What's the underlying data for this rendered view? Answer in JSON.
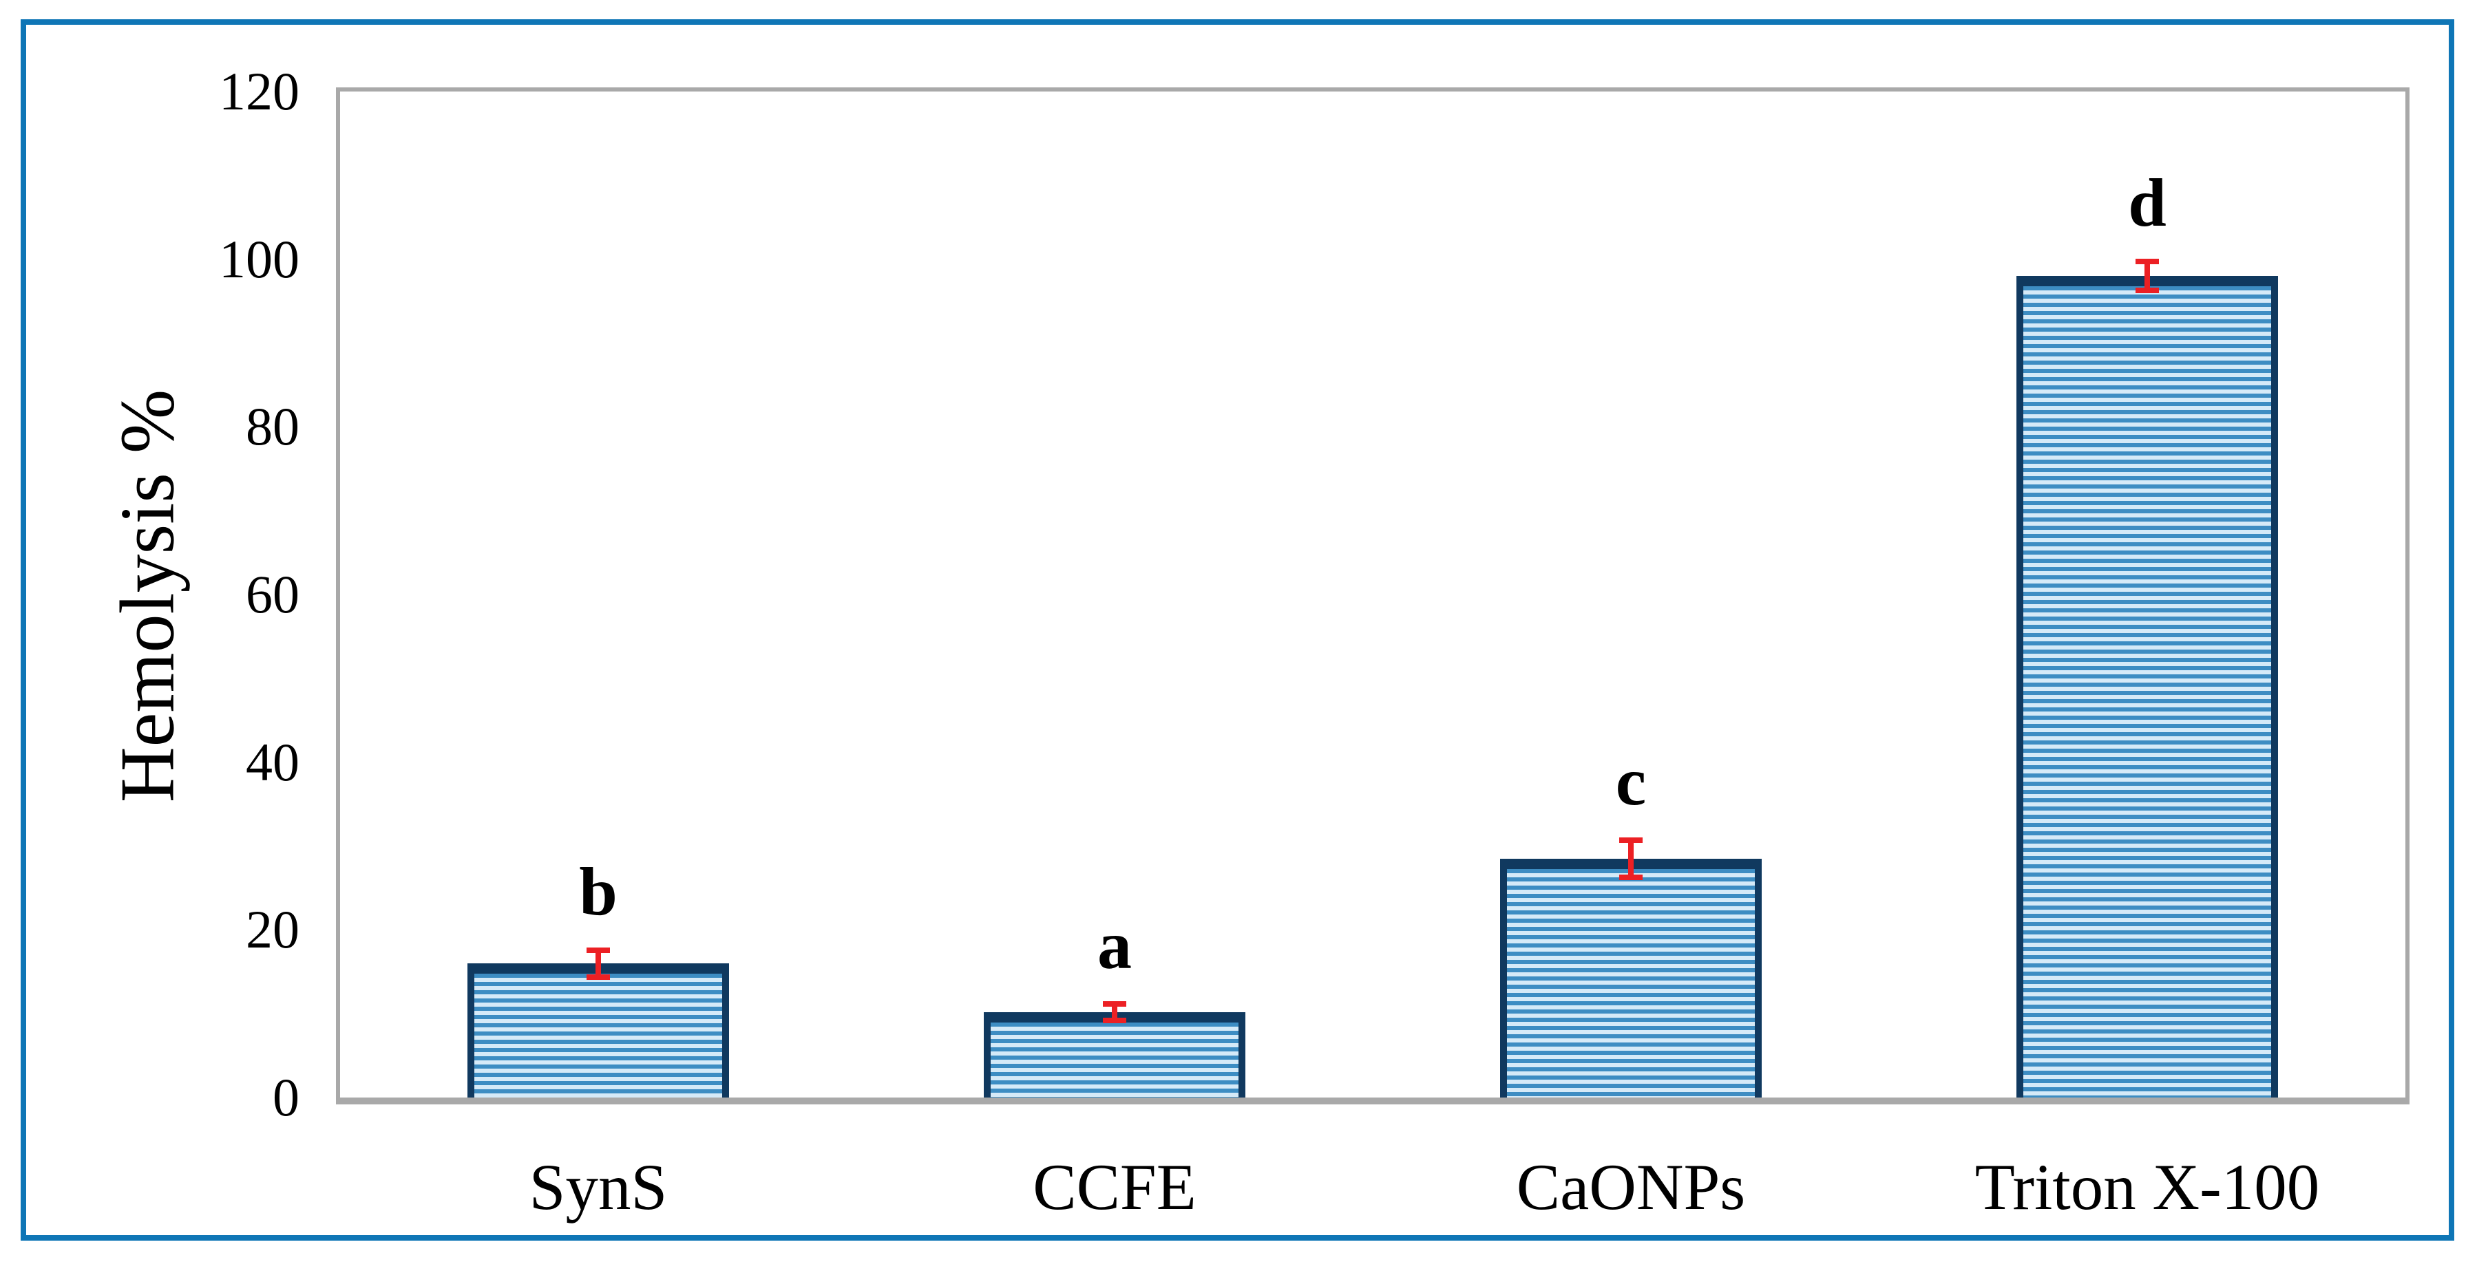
{
  "chart_data": {
    "type": "bar",
    "title": "",
    "xlabel": "",
    "ylabel": "Hemolysis %",
    "ylim": [
      0,
      120
    ],
    "yticks": [
      0,
      20,
      40,
      60,
      80,
      100,
      120
    ],
    "grid": false,
    "legend": false,
    "categories": [
      "SynS",
      "CCFE",
      "CaONPs",
      "Triton X-100"
    ],
    "values": [
      16,
      10.2,
      28.5,
      98
    ],
    "error_bars": [
      1.6,
      1.0,
      2.2,
      1.7
    ],
    "significance_letters": [
      "b",
      "a",
      "c",
      "d"
    ],
    "bar_style": "horizontal-stripes"
  },
  "colors": {
    "frame_border": "#0f76b6",
    "axis_border": "#a9a9a9",
    "bar_stripe_blue": "#3d8dc3",
    "bar_stripe_light": "#d5eaf8",
    "bar_border_navy": "#10395f",
    "error_bar_red": "#ec2024",
    "text": "#000000",
    "background": "#ffffff"
  }
}
